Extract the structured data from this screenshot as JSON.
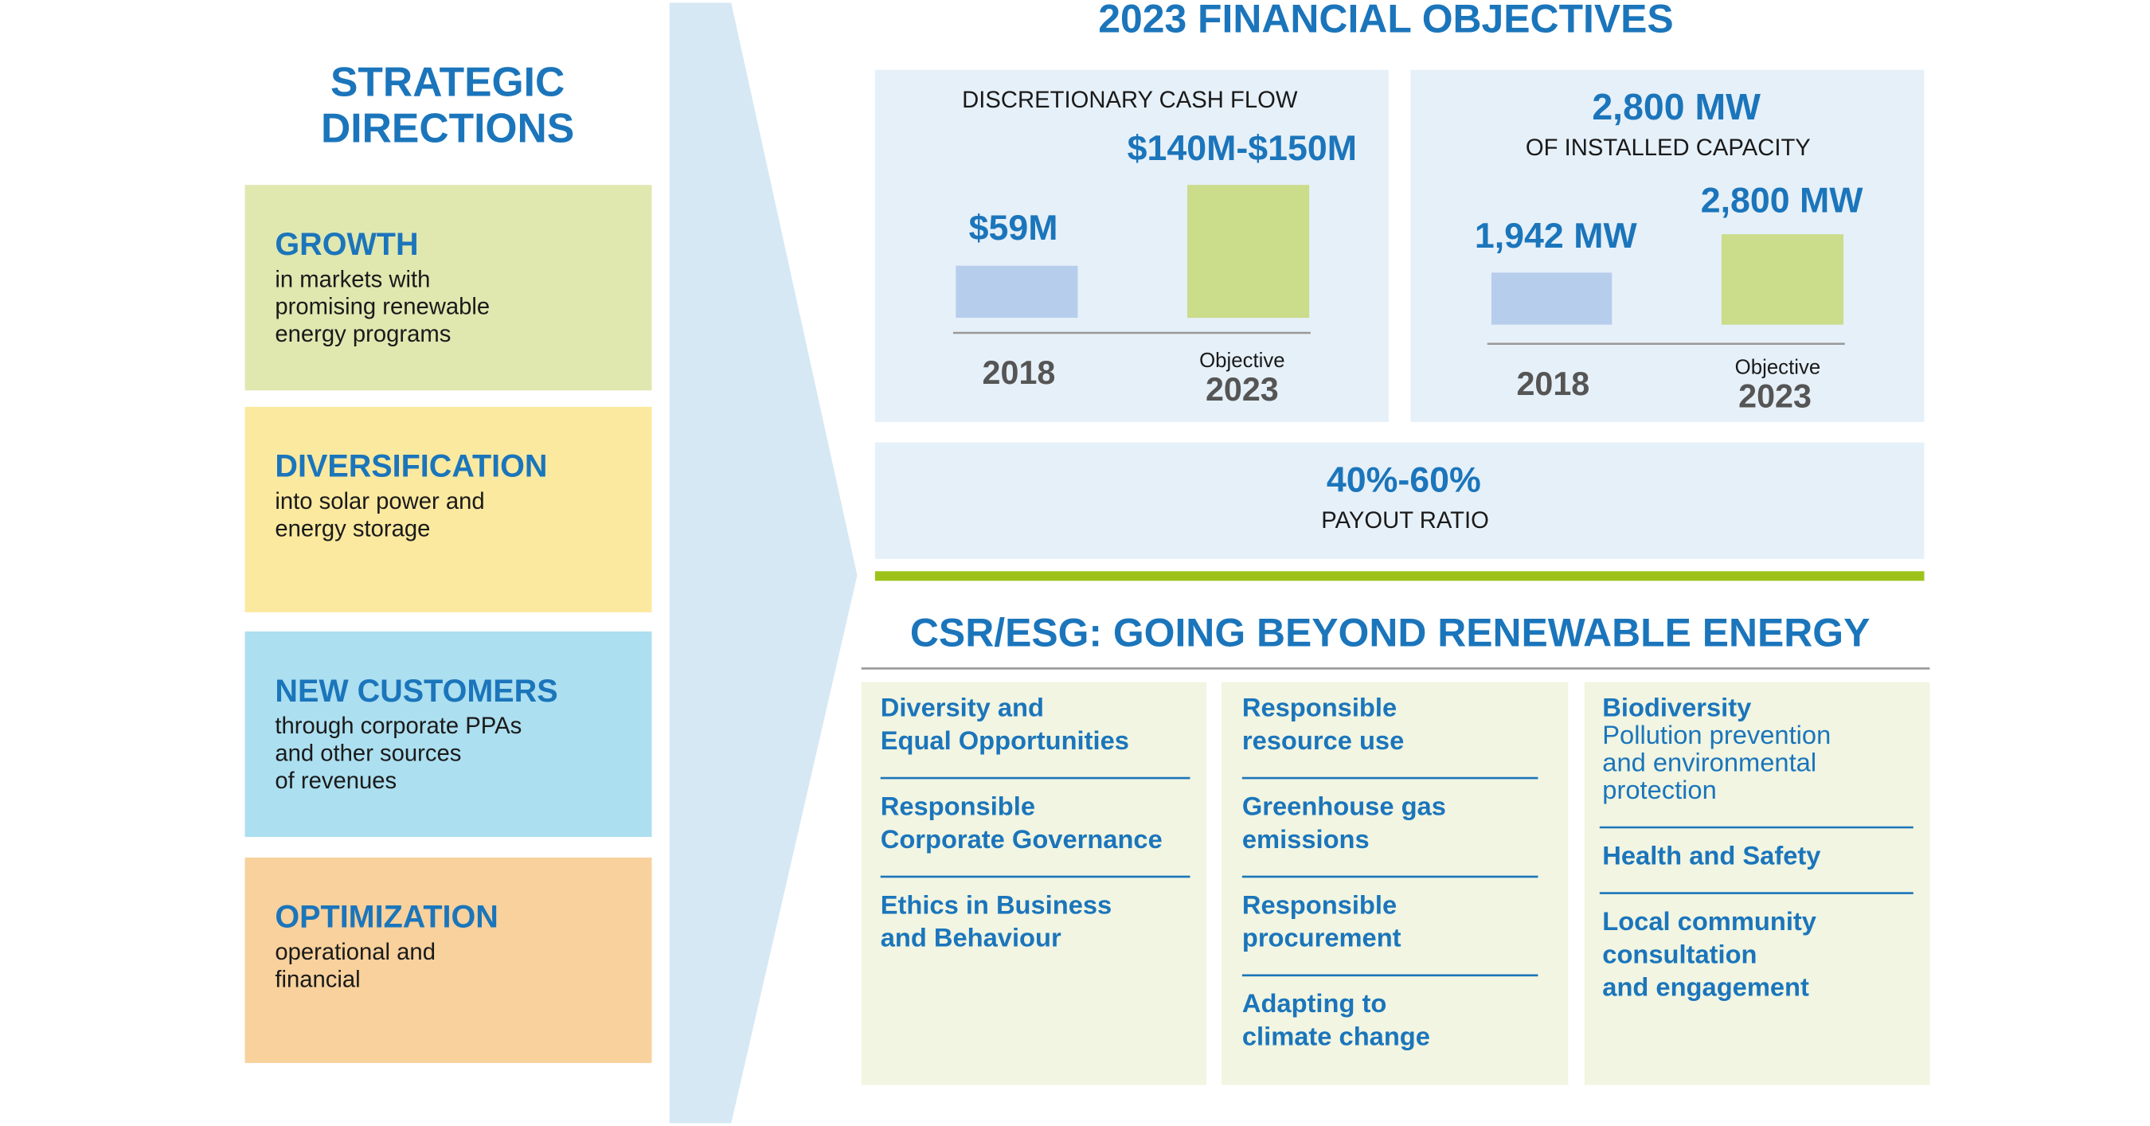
{
  "strategic": {
    "title": [
      "STRATEGIC",
      "DIRECTIONS"
    ],
    "items": [
      {
        "heading": "GROWTH",
        "lines": [
          "in markets with",
          "promising renewable",
          "energy programs"
        ]
      },
      {
        "heading": "DIVERSIFICATION",
        "lines": [
          "into solar power and",
          "energy storage"
        ]
      },
      {
        "heading": "NEW CUSTOMERS",
        "lines": [
          "through corporate PPAs",
          "and other sources",
          "of revenues"
        ]
      },
      {
        "heading": "OPTIMIZATION",
        "lines": [
          "operational and",
          "financial"
        ]
      }
    ]
  },
  "financial": {
    "title": "2023 FINANCIAL OBJECTIVES",
    "cash_flow": {
      "label": "DISCRETIONARY CASH FLOW",
      "objective": "$140M-$150M",
      "value_2018": "$59M",
      "year_2018": "2018",
      "objective_label": "Objective",
      "year_2023": "2023"
    },
    "capacity": {
      "headline": "2,800 MW",
      "label": "OF INSTALLED CAPACITY",
      "value_2018": "1,942 MW",
      "objective": "2,800 MW",
      "year_2018": "2018",
      "objective_label": "Objective",
      "year_2023": "2023"
    },
    "payout": {
      "value": "40%-60%",
      "label": "PAYOUT RATIO"
    }
  },
  "csr": {
    "title": "CSR/ESG: GOING BEYOND RENEWABLE ENERGY",
    "columns": [
      [
        {
          "lines": [
            "Diversity and",
            "Equal Opportunities"
          ]
        },
        {
          "lines": [
            "Responsible",
            "Corporate Governance"
          ]
        },
        {
          "lines": [
            "Ethics in Business",
            "and Behaviour"
          ]
        }
      ],
      [
        {
          "lines": [
            "Responsible",
            "resource use"
          ]
        },
        {
          "lines": [
            "Greenhouse gas",
            "emissions"
          ]
        },
        {
          "lines": [
            "Responsible",
            "procurement"
          ]
        },
        {
          "lines": [
            "Adapting to",
            "climate change"
          ]
        }
      ],
      [
        {
          "lines": [
            "Biodiversity"
          ],
          "detail": [
            "Pollution prevention",
            "and environmental",
            "protection"
          ]
        },
        {
          "lines": [
            "Health and Safety"
          ]
        },
        {
          "lines": [
            "Local community",
            "consultation",
            "and engagement"
          ]
        }
      ]
    ]
  }
}
